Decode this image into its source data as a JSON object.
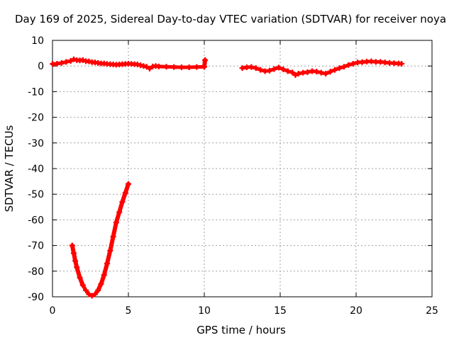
{
  "chart_data": {
    "type": "scatter",
    "title": "Day 169 of 2025, Sidereal Day-to-day VTEC variation (SDTVAR) for receiver noya",
    "xlabel": "GPS time / hours",
    "ylabel": "SDTVAR / TECUs",
    "xlim": [
      0,
      25
    ],
    "ylim": [
      -90,
      10
    ],
    "xticks": [
      0,
      5,
      10,
      15,
      20,
      25
    ],
    "yticks": [
      10,
      0,
      -10,
      -20,
      -30,
      -40,
      -50,
      -60,
      -70,
      -80,
      -90
    ],
    "grid": true,
    "marker": "plus",
    "color": "#ff0000",
    "series": [
      {
        "name": "near-zero segment 1",
        "points": [
          [
            0.0,
            0.8
          ],
          [
            0.3,
            0.9
          ],
          [
            0.6,
            1.2
          ],
          [
            0.9,
            1.6
          ],
          [
            1.2,
            2.0
          ],
          [
            1.4,
            2.6
          ],
          [
            1.6,
            2.3
          ],
          [
            1.8,
            2.2
          ],
          [
            2.0,
            2.3
          ],
          [
            2.2,
            1.9
          ],
          [
            2.4,
            1.8
          ],
          [
            2.6,
            1.5
          ],
          [
            2.8,
            1.4
          ],
          [
            3.0,
            1.2
          ],
          [
            3.2,
            1.0
          ],
          [
            3.4,
            1.0
          ],
          [
            3.6,
            0.8
          ],
          [
            3.8,
            0.7
          ],
          [
            4.0,
            0.6
          ],
          [
            4.2,
            0.5
          ],
          [
            4.4,
            0.6
          ],
          [
            4.6,
            0.7
          ],
          [
            4.8,
            0.8
          ],
          [
            5.0,
            0.9
          ],
          [
            5.2,
            0.8
          ],
          [
            5.4,
            0.7
          ],
          [
            5.6,
            0.6
          ],
          [
            5.8,
            0.3
          ],
          [
            6.0,
            0.0
          ],
          [
            6.2,
            -0.3
          ],
          [
            6.4,
            -1.0
          ],
          [
            6.6,
            -0.2
          ],
          [
            6.8,
            0.0
          ],
          [
            7.0,
            -0.2
          ],
          [
            7.5,
            -0.3
          ],
          [
            8.0,
            -0.4
          ],
          [
            8.5,
            -0.5
          ],
          [
            9.0,
            -0.5
          ],
          [
            9.5,
            -0.4
          ],
          [
            10.0,
            -0.3
          ],
          [
            10.05,
            2.3
          ]
        ]
      },
      {
        "name": "U-shaped segment",
        "points": [
          [
            1.3,
            -70
          ],
          [
            1.4,
            -73
          ],
          [
            1.5,
            -76
          ],
          [
            1.6,
            -78.5
          ],
          [
            1.8,
            -82.5
          ],
          [
            2.0,
            -85.5
          ],
          [
            2.2,
            -87.5
          ],
          [
            2.4,
            -89
          ],
          [
            2.6,
            -89.6
          ],
          [
            2.8,
            -89
          ],
          [
            3.0,
            -87.5
          ],
          [
            3.2,
            -85
          ],
          [
            3.4,
            -81.5
          ],
          [
            3.6,
            -77
          ],
          [
            3.8,
            -72
          ],
          [
            4.0,
            -66.5
          ],
          [
            4.2,
            -61
          ],
          [
            4.4,
            -57
          ],
          [
            4.6,
            -53
          ],
          [
            4.8,
            -49.5
          ],
          [
            5.0,
            -46
          ]
        ]
      },
      {
        "name": "near-zero segment 2",
        "points": [
          [
            12.5,
            -0.8
          ],
          [
            12.8,
            -0.5
          ],
          [
            13.1,
            -0.4
          ],
          [
            13.4,
            -0.8
          ],
          [
            13.7,
            -1.5
          ],
          [
            14.0,
            -2.0
          ],
          [
            14.3,
            -1.8
          ],
          [
            14.6,
            -1.2
          ],
          [
            14.9,
            -0.6
          ],
          [
            15.2,
            -1.3
          ],
          [
            15.5,
            -2.0
          ],
          [
            15.8,
            -2.5
          ],
          [
            16.0,
            -3.5
          ],
          [
            16.2,
            -3.0
          ],
          [
            16.5,
            -2.6
          ],
          [
            16.8,
            -2.4
          ],
          [
            17.1,
            -2.0
          ],
          [
            17.4,
            -2.2
          ],
          [
            17.7,
            -2.6
          ],
          [
            18.0,
            -3.0
          ],
          [
            18.3,
            -2.2
          ],
          [
            18.6,
            -1.5
          ],
          [
            18.9,
            -0.8
          ],
          [
            19.2,
            -0.3
          ],
          [
            19.5,
            0.4
          ],
          [
            19.8,
            0.9
          ],
          [
            20.1,
            1.4
          ],
          [
            20.4,
            1.5
          ],
          [
            20.7,
            1.7
          ],
          [
            21.0,
            1.8
          ],
          [
            21.3,
            1.6
          ],
          [
            21.6,
            1.6
          ],
          [
            21.9,
            1.4
          ],
          [
            22.2,
            1.2
          ],
          [
            22.5,
            1.1
          ],
          [
            22.8,
            1.0
          ],
          [
            23.0,
            0.9
          ]
        ]
      }
    ]
  }
}
